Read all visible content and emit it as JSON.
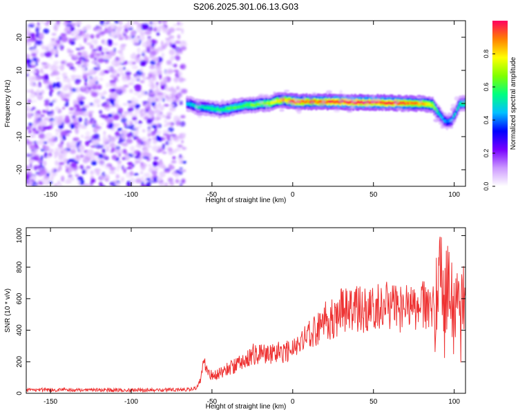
{
  "title": "S206.2025.301.06.13.G03",
  "chart_data": [
    {
      "type": "heatmap",
      "xlabel": "Height of straight line (km)",
      "ylabel": "Frequency (Hz)",
      "xlim": [
        -165,
        107
      ],
      "ylim": [
        -25,
        25
      ],
      "xticks": [
        -150,
        -100,
        -50,
        0,
        50,
        100
      ],
      "yticks": [
        -20,
        -10,
        0,
        10,
        20
      ],
      "noise_region_x": [
        -165,
        -67
      ],
      "ridge": {
        "x": [
          -66,
          -60,
          -50,
          -45,
          -40,
          -35,
          -30,
          -25,
          -20,
          -15,
          -10,
          -5,
          0,
          10,
          20,
          30,
          40,
          50,
          60,
          70,
          80,
          86,
          90,
          93,
          95,
          98,
          101,
          103,
          107
        ],
        "freq": [
          0,
          -1,
          -1.5,
          -2,
          -1.5,
          -1,
          -0.5,
          -0.5,
          0,
          0,
          0.8,
          1,
          0.5,
          0.5,
          0.5,
          0.5,
          0.3,
          0.3,
          0.2,
          0,
          0,
          -0.5,
          -3,
          -5,
          -5.5,
          -5,
          -2,
          0,
          0
        ],
        "amplitude": [
          0.45,
          0.5,
          0.55,
          0.55,
          0.6,
          0.6,
          0.6,
          0.65,
          0.65,
          0.7,
          0.8,
          0.85,
          0.95,
          0.9,
          0.95,
          0.98,
          0.98,
          0.97,
          0.97,
          0.9,
          0.85,
          0.75,
          0.5,
          0.45,
          0.4,
          0.45,
          0.5,
          0.55,
          0.6
        ]
      },
      "colorbar": {
        "label": "Normalized spectral amplitude",
        "range": [
          0,
          1
        ],
        "ticks": [
          "0.0",
          "0.2",
          "0.4",
          "0.6",
          "0.8"
        ],
        "colors": [
          "#ffffff",
          "#cc99ff",
          "#7700ff",
          "#0000ff",
          "#00c0ff",
          "#00ff80",
          "#80ff00",
          "#ffff00",
          "#ff8000",
          "#ff0060"
        ]
      }
    },
    {
      "type": "line",
      "xlabel": "Height of straight line (km)",
      "ylabel": "SNR (10 * v/v)",
      "xlim": [
        -165,
        107
      ],
      "ylim": [
        0,
        1050
      ],
      "xticks": [
        -150,
        -100,
        -50,
        0,
        50,
        100
      ],
      "yticks": [
        0,
        200,
        400,
        600,
        800,
        1000
      ],
      "color": "#ee3333",
      "series": [
        {
          "name": "SNR",
          "x": [
            -165,
            -150,
            -120,
            -90,
            -65,
            -60,
            -57,
            -55,
            -50,
            -45,
            -40,
            -35,
            -30,
            -25,
            -20,
            -15,
            -10,
            -5,
            0,
            5,
            10,
            15,
            20,
            25,
            30,
            35,
            40,
            45,
            50,
            55,
            60,
            65,
            70,
            75,
            80,
            85,
            88,
            90,
            92,
            94,
            96,
            98,
            100,
            102,
            104,
            107
          ],
          "values": [
            20,
            22,
            20,
            20,
            25,
            30,
            80,
            190,
            110,
            130,
            160,
            180,
            210,
            250,
            240,
            260,
            250,
            270,
            280,
            320,
            380,
            400,
            460,
            480,
            520,
            560,
            540,
            530,
            560,
            540,
            560,
            530,
            540,
            520,
            560,
            540,
            560,
            600,
            900,
            500,
            800,
            600,
            400,
            500,
            500,
            480
          ]
        }
      ]
    }
  ]
}
